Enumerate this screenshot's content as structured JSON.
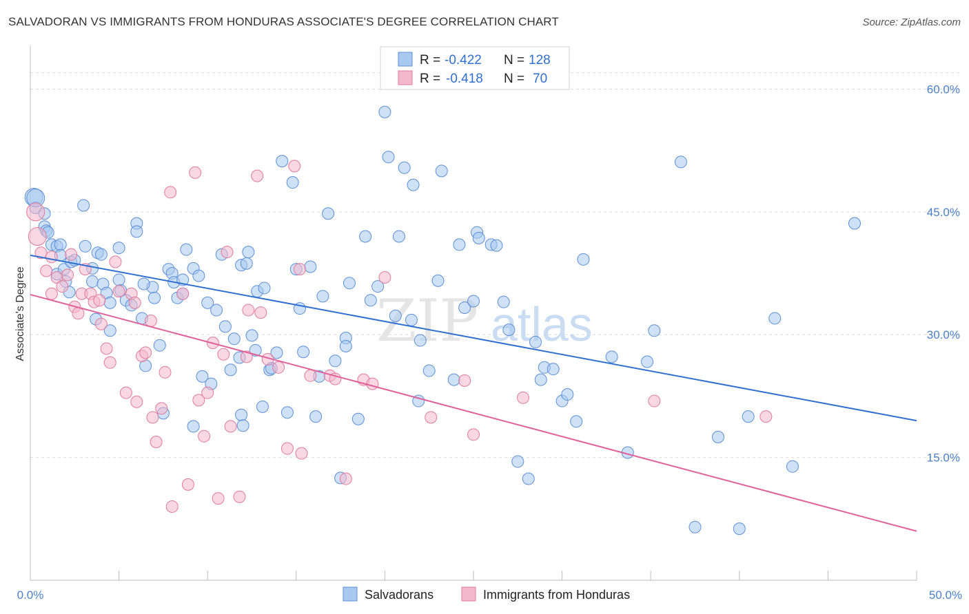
{
  "title": "SALVADORAN VS IMMIGRANTS FROM HONDURAS ASSOCIATE'S DEGREE CORRELATION CHART",
  "source": "Source: ZipAtlas.com",
  "watermark": {
    "zip": "ZIP",
    "atlas": "atlas"
  },
  "legend": {
    "rows": [
      {
        "r_label": "R =",
        "r_value": "-0.422",
        "n_label": "N =",
        "n_value": "128"
      },
      {
        "r_label": "R =",
        "r_value": "-0.418",
        "n_label": "N =",
        "n_value": "70"
      }
    ]
  },
  "bottom_legend": [
    "Salvadorans",
    "Immigrants from Honduras"
  ],
  "colors": {
    "blue_fill": "#a8c8f0",
    "blue_stroke": "#5b8fd6",
    "blue_line": "#2f6fd0",
    "pink_fill": "#f4b8cc",
    "pink_stroke": "#e07a9c",
    "pink_line": "#e0609a",
    "grid": "#dddddd",
    "tick_text": "#4a7fc9"
  },
  "chart_data": {
    "type": "scatter",
    "title": "SALVADORAN VS IMMIGRANTS FROM HONDURAS ASSOCIATE'S DEGREE CORRELATION CHART",
    "ylabel": "Associate's Degree",
    "xlabel": "",
    "xlim": [
      0,
      50
    ],
    "ylim": [
      0,
      65
    ],
    "x_ticks": [
      "0.0%",
      "50.0%"
    ],
    "y_ticks": [
      {
        "value": 15,
        "label": "15.0%"
      },
      {
        "value": 30,
        "label": "30.0%"
      },
      {
        "value": 45,
        "label": "45.0%"
      },
      {
        "value": 60,
        "label": "60.0%"
      }
    ],
    "grid": true,
    "legend_position": "top-center",
    "series": [
      {
        "name": "Salvadorans",
        "r": -0.422,
        "n": 128,
        "trend": {
          "x": [
            0,
            50
          ],
          "y": [
            39.7,
            19.5
          ]
        },
        "points": [
          [
            0.2,
            46.8
          ],
          [
            0.3,
            45.5
          ],
          [
            0.8,
            44.8
          ],
          [
            0.8,
            43.2
          ],
          [
            0.9,
            42.7
          ],
          [
            1.0,
            42.5
          ],
          [
            1.2,
            41.0
          ],
          [
            1.5,
            40.8
          ],
          [
            1.7,
            41.0
          ],
          [
            1.7,
            39.7
          ],
          [
            1.5,
            37.4
          ],
          [
            1.9,
            38.0
          ],
          [
            2.0,
            36.5
          ],
          [
            2.2,
            35.2
          ],
          [
            2.3,
            38.9
          ],
          [
            2.5,
            39.1
          ],
          [
            3.0,
            45.8
          ],
          [
            3.1,
            40.8
          ],
          [
            3.5,
            38.1
          ],
          [
            3.5,
            36.5
          ],
          [
            3.8,
            40.0
          ],
          [
            4.0,
            39.8
          ],
          [
            4.1,
            36.2
          ],
          [
            4.3,
            35.1
          ],
          [
            4.5,
            33.9
          ],
          [
            4.5,
            30.5
          ],
          [
            5.0,
            40.6
          ],
          [
            5.0,
            36.7
          ],
          [
            5.1,
            35.4
          ],
          [
            5.4,
            34.2
          ],
          [
            5.7,
            33.6
          ],
          [
            6.0,
            43.6
          ],
          [
            6.0,
            42.6
          ],
          [
            6.3,
            32.0
          ],
          [
            6.5,
            26.2
          ],
          [
            6.9,
            35.8
          ],
          [
            7.0,
            34.5
          ],
          [
            7.3,
            28.7
          ],
          [
            7.5,
            20.4
          ],
          [
            7.8,
            38.0
          ],
          [
            8.0,
            37.5
          ],
          [
            8.1,
            36.4
          ],
          [
            8.3,
            34.5
          ],
          [
            8.6,
            36.7
          ],
          [
            8.6,
            35.0
          ],
          [
            9.2,
            38.1
          ],
          [
            9.5,
            37.2
          ],
          [
            9.7,
            24.9
          ],
          [
            10.0,
            33.9
          ],
          [
            10.2,
            24.0
          ],
          [
            10.5,
            33.0
          ],
          [
            10.8,
            39.8
          ],
          [
            11.0,
            31.0
          ],
          [
            11.3,
            25.7
          ],
          [
            11.5,
            29.5
          ],
          [
            11.8,
            27.2
          ],
          [
            11.9,
            38.5
          ],
          [
            11.9,
            20.2
          ],
          [
            12.0,
            18.9
          ],
          [
            12.2,
            38.7
          ],
          [
            12.3,
            40.1
          ],
          [
            12.5,
            29.9
          ],
          [
            12.7,
            28.1
          ],
          [
            12.8,
            35.3
          ],
          [
            13.2,
            35.7
          ],
          [
            13.5,
            25.7
          ],
          [
            13.6,
            25.9
          ],
          [
            13.9,
            27.8
          ],
          [
            14.2,
            51.2
          ],
          [
            14.5,
            20.5
          ],
          [
            14.8,
            48.6
          ],
          [
            15.0,
            38.0
          ],
          [
            15.2,
            33.2
          ],
          [
            15.4,
            27.9
          ],
          [
            15.8,
            38.3
          ],
          [
            16.3,
            24.9
          ],
          [
            16.5,
            34.7
          ],
          [
            16.8,
            44.8
          ],
          [
            17.2,
            26.8
          ],
          [
            17.5,
            12.5
          ],
          [
            17.8,
            29.6
          ],
          [
            17.8,
            28.6
          ],
          [
            18.0,
            36.3
          ],
          [
            18.5,
            19.7
          ],
          [
            18.9,
            42.0
          ],
          [
            19.2,
            34.2
          ],
          [
            19.6,
            35.9
          ],
          [
            20.0,
            57.2
          ],
          [
            20.2,
            51.7
          ],
          [
            20.6,
            32.3
          ],
          [
            20.8,
            42.0
          ],
          [
            21.1,
            50.4
          ],
          [
            21.5,
            31.8
          ],
          [
            21.6,
            48.3
          ],
          [
            21.9,
            21.9
          ],
          [
            22.0,
            29.3
          ],
          [
            22.5,
            25.6
          ],
          [
            23.0,
            36.6
          ],
          [
            23.2,
            50.0
          ],
          [
            23.9,
            24.5
          ],
          [
            24.2,
            41.0
          ],
          [
            24.5,
            33.3
          ],
          [
            25.0,
            34.1
          ],
          [
            25.2,
            42.5
          ],
          [
            25.3,
            41.8
          ],
          [
            26.0,
            41.0
          ],
          [
            26.3,
            40.9
          ],
          [
            26.7,
            34.0
          ],
          [
            27.0,
            30.6
          ],
          [
            27.5,
            14.5
          ],
          [
            28.1,
            12.4
          ],
          [
            28.5,
            29.1
          ],
          [
            28.8,
            24.5
          ],
          [
            29.0,
            26.0
          ],
          [
            29.5,
            25.8
          ],
          [
            30.0,
            21.9
          ],
          [
            30.3,
            22.7
          ],
          [
            30.8,
            19.4
          ],
          [
            31.2,
            39.2
          ],
          [
            32.8,
            27.3
          ],
          [
            33.7,
            15.6
          ],
          [
            34.8,
            26.7
          ],
          [
            35.2,
            30.5
          ],
          [
            36.7,
            51.1
          ],
          [
            37.5,
            6.5
          ],
          [
            38.8,
            17.5
          ],
          [
            40.0,
            6.3
          ],
          [
            40.5,
            20.0
          ],
          [
            42.0,
            32.0
          ],
          [
            43.0,
            13.9
          ],
          [
            46.5,
            43.6
          ],
          [
            6.4,
            36.2
          ],
          [
            8.8,
            40.4
          ],
          [
            13.1,
            21.2
          ],
          [
            16.1,
            20.0
          ],
          [
            9.2,
            18.8
          ],
          [
            3.7,
            31.9
          ],
          [
            0.3,
            46.7
          ]
        ]
      },
      {
        "name": "Immigrants from Honduras",
        "r": -0.418,
        "n": 70,
        "trend": {
          "x": [
            0,
            50
          ],
          "y": [
            34.9,
            6.0
          ]
        },
        "points": [
          [
            0.3,
            45.0
          ],
          [
            0.4,
            42.0
          ],
          [
            0.6,
            40.0
          ],
          [
            0.9,
            37.8
          ],
          [
            1.2,
            39.5
          ],
          [
            1.2,
            35.0
          ],
          [
            1.5,
            37.0
          ],
          [
            1.8,
            35.9
          ],
          [
            2.1,
            37.3
          ],
          [
            2.3,
            39.8
          ],
          [
            2.5,
            33.4
          ],
          [
            2.7,
            32.6
          ],
          [
            2.9,
            35.0
          ],
          [
            3.1,
            38.0
          ],
          [
            3.4,
            35.0
          ],
          [
            3.6,
            34.0
          ],
          [
            3.9,
            34.2
          ],
          [
            4.0,
            31.3
          ],
          [
            4.3,
            28.3
          ],
          [
            4.5,
            26.6
          ],
          [
            4.8,
            38.9
          ],
          [
            5.0,
            35.3
          ],
          [
            5.4,
            22.9
          ],
          [
            5.7,
            35.0
          ],
          [
            5.9,
            33.9
          ],
          [
            6.0,
            21.8
          ],
          [
            6.3,
            27.4
          ],
          [
            6.5,
            27.8
          ],
          [
            6.9,
            19.9
          ],
          [
            7.1,
            16.9
          ],
          [
            7.4,
            21.0
          ],
          [
            7.6,
            25.4
          ],
          [
            7.9,
            47.4
          ],
          [
            8.0,
            9.0
          ],
          [
            8.6,
            35.0
          ],
          [
            8.9,
            11.7
          ],
          [
            9.3,
            49.8
          ],
          [
            9.5,
            22.0
          ],
          [
            9.8,
            17.6
          ],
          [
            10.0,
            22.9
          ],
          [
            10.3,
            29.0
          ],
          [
            10.6,
            10.0
          ],
          [
            10.9,
            27.6
          ],
          [
            11.1,
            40.1
          ],
          [
            11.3,
            18.8
          ],
          [
            11.8,
            10.2
          ],
          [
            12.2,
            27.3
          ],
          [
            12.8,
            49.4
          ],
          [
            13.0,
            32.7
          ],
          [
            13.4,
            27.0
          ],
          [
            14.0,
            26.0
          ],
          [
            14.5,
            16.1
          ],
          [
            14.9,
            50.6
          ],
          [
            15.2,
            38.0
          ],
          [
            15.3,
            15.5
          ],
          [
            15.8,
            25.0
          ],
          [
            16.9,
            25.0
          ],
          [
            17.2,
            24.6
          ],
          [
            17.8,
            12.4
          ],
          [
            18.8,
            24.5
          ],
          [
            19.3,
            24.0
          ],
          [
            20.0,
            37.0
          ],
          [
            22.6,
            19.9
          ],
          [
            24.5,
            24.4
          ],
          [
            25.0,
            17.8
          ],
          [
            27.8,
            22.3
          ],
          [
            35.2,
            21.9
          ],
          [
            41.5,
            20.0
          ],
          [
            12.3,
            33.0
          ],
          [
            6.8,
            31.7
          ]
        ]
      }
    ]
  }
}
